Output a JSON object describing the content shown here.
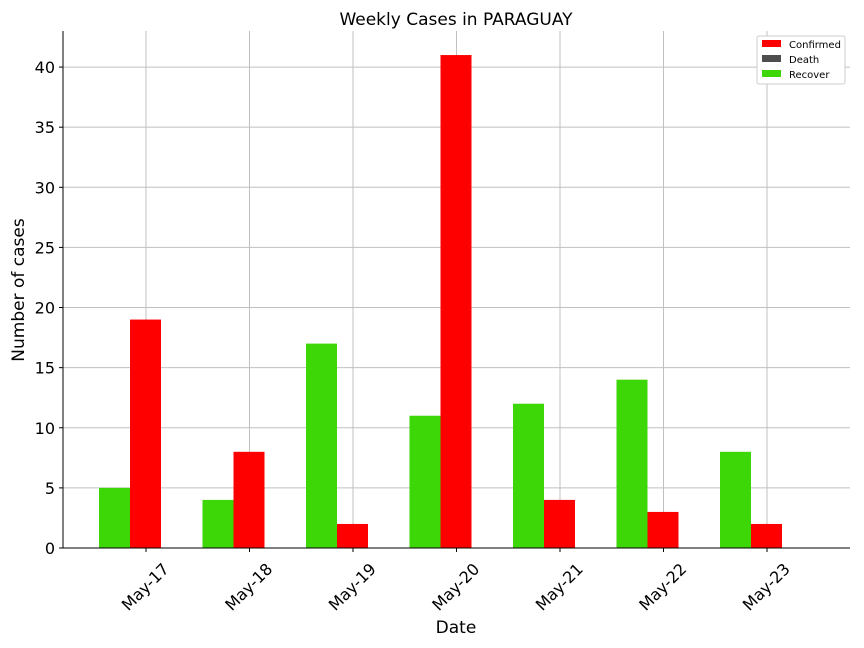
{
  "chart_data": {
    "type": "bar",
    "title": "Weekly Cases in PARAGUAY",
    "xlabel": "Date",
    "ylabel": "Number of cases",
    "categories": [
      "May-17",
      "May-18",
      "May-19",
      "May-20",
      "May-21",
      "May-22",
      "May-23"
    ],
    "series": [
      {
        "name": "Recover",
        "color": "#3dd606",
        "values": [
          5,
          4,
          17,
          11,
          12,
          14,
          8
        ]
      },
      {
        "name": "Confirmed",
        "color": "#ff0000",
        "values": [
          19,
          8,
          2,
          41,
          4,
          3,
          2
        ]
      },
      {
        "name": "Death",
        "color": "#4d4d4d",
        "values": [
          0,
          0,
          0,
          0,
          0,
          0,
          0
        ]
      }
    ],
    "legend_order": [
      "Confirmed",
      "Death",
      "Recover"
    ],
    "legend_position": "top-right",
    "ylim": [
      0,
      43
    ],
    "yticks": [
      0,
      5,
      10,
      15,
      20,
      25,
      30,
      35,
      40
    ],
    "grid": true
  }
}
